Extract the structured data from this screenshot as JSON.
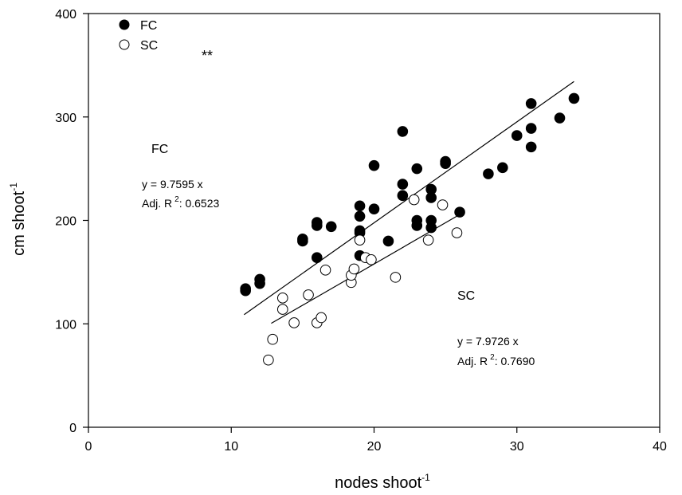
{
  "chart_data": {
    "type": "scatter",
    "xlabel": "nodes shoot",
    "xlabel_sup": "-1",
    "ylabel": "cm shoot",
    "ylabel_sup": "-1",
    "xlim": [
      0,
      40
    ],
    "ylim": [
      0,
      400
    ],
    "xticks": [
      0,
      10,
      20,
      30,
      40
    ],
    "yticks": [
      0,
      100,
      200,
      300,
      400
    ],
    "grid": false,
    "legend_position": "top-left",
    "significance_marker": "**",
    "series": [
      {
        "name": "FC",
        "marker": "filled-circle",
        "points": [
          [
            11,
            134
          ],
          [
            11,
            132
          ],
          [
            12,
            143
          ],
          [
            12,
            139
          ],
          [
            15,
            182
          ],
          [
            15,
            180
          ],
          [
            16,
            198
          ],
          [
            16,
            195
          ],
          [
            16,
            164
          ],
          [
            17,
            194
          ],
          [
            19,
            214
          ],
          [
            19,
            204
          ],
          [
            19,
            190
          ],
          [
            19,
            188
          ],
          [
            19,
            166
          ],
          [
            20,
            253
          ],
          [
            20,
            211
          ],
          [
            21,
            180
          ],
          [
            22,
            286
          ],
          [
            22,
            235
          ],
          [
            22,
            224
          ],
          [
            23,
            250
          ],
          [
            23,
            200
          ],
          [
            23,
            195
          ],
          [
            24,
            230
          ],
          [
            24,
            222
          ],
          [
            24,
            200
          ],
          [
            24,
            193
          ],
          [
            25,
            257
          ],
          [
            25,
            255
          ],
          [
            26,
            208
          ],
          [
            28,
            245
          ],
          [
            29,
            251
          ],
          [
            30,
            282
          ],
          [
            31,
            313
          ],
          [
            31,
            289
          ],
          [
            31,
            271
          ],
          [
            33,
            299
          ],
          [
            34,
            318
          ]
        ],
        "fit": {
          "equation": "y = 9.7595 x",
          "adj_r2_label": "Adj. R",
          "adj_r2_sup": "2",
          "adj_r2_value": ":  0.6523",
          "x_range": [
            10.9,
            34
          ],
          "intercept": 2.5,
          "slope": 9.7595
        }
      },
      {
        "name": "SC",
        "marker": "open-circle",
        "points": [
          [
            12.6,
            65
          ],
          [
            12.9,
            85
          ],
          [
            13.6,
            125
          ],
          [
            13.6,
            114
          ],
          [
            14.4,
            101
          ],
          [
            15.4,
            128
          ],
          [
            16.0,
            101
          ],
          [
            16.3,
            106
          ],
          [
            16.6,
            152
          ],
          [
            18.4,
            140
          ],
          [
            18.4,
            147
          ],
          [
            18.6,
            153
          ],
          [
            19.0,
            181
          ],
          [
            19.4,
            164
          ],
          [
            19.8,
            162
          ],
          [
            21.5,
            145
          ],
          [
            22.8,
            220
          ],
          [
            23.8,
            181
          ],
          [
            24.8,
            215
          ],
          [
            25.8,
            188
          ]
        ],
        "fit": {
          "equation": "y = 7.9726 x",
          "adj_r2_label": "Adj. R",
          "adj_r2_sup": "2",
          "adj_r2_value": ":  0.7690",
          "x_range": [
            12.8,
            25.9
          ],
          "intercept": -1.6,
          "slope": 7.9726
        }
      }
    ],
    "annotations": {
      "fc_label": "FC",
      "sc_label": "SC"
    }
  }
}
